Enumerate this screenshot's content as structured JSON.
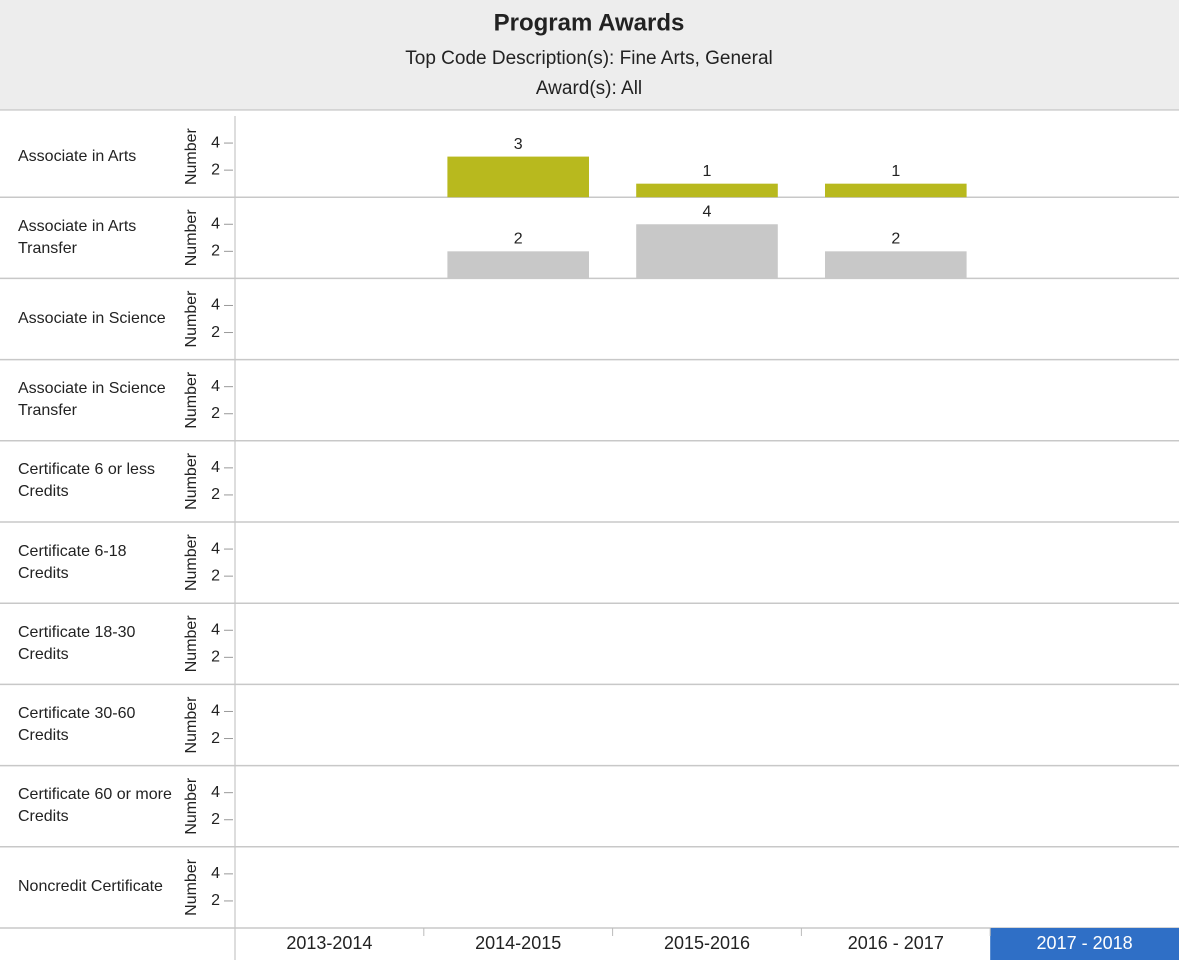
{
  "chart_data": {
    "type": "bar",
    "title": "Program Awards",
    "subtitle": "Top Code Description(s): Fine Arts, General",
    "subtitle2": "Award(s): All",
    "y_label": "Number",
    "categories": [
      "2013-2014",
      "2014-2015",
      "2015-2016",
      "2016 - 2017",
      "2017 - 2018"
    ],
    "highlight_index": 4,
    "highlight_color": "#2f6fc6",
    "ylim": [
      0,
      6
    ],
    "yticks": [
      2,
      4
    ],
    "series": [
      {
        "name": "Associate in Arts",
        "color": "#b8b91e",
        "values": [
          null,
          3,
          1,
          1,
          null
        ]
      },
      {
        "name": "Associate in Arts Transfer",
        "color": "#c8c8c8",
        "values": [
          null,
          2,
          4,
          2,
          null
        ]
      },
      {
        "name": "Associate in Science",
        "values": [
          null,
          null,
          null,
          null,
          null
        ]
      },
      {
        "name": "Associate in Science Transfer",
        "values": [
          null,
          null,
          null,
          null,
          null
        ]
      },
      {
        "name": "Certificate 6 or less Credits",
        "values": [
          null,
          null,
          null,
          null,
          null
        ]
      },
      {
        "name": "Certificate 6-18 Credits",
        "values": [
          null,
          null,
          null,
          null,
          null
        ]
      },
      {
        "name": "Certificate 18-30 Credits",
        "values": [
          null,
          null,
          null,
          null,
          null
        ]
      },
      {
        "name": "Certificate 30-60 Credits",
        "values": [
          null,
          null,
          null,
          null,
          null
        ]
      },
      {
        "name": "Certificate 60 or more Credits",
        "values": [
          null,
          null,
          null,
          null,
          null
        ]
      },
      {
        "name": "Noncredit Certificate",
        "values": [
          null,
          null,
          null,
          null,
          null
        ]
      }
    ]
  }
}
